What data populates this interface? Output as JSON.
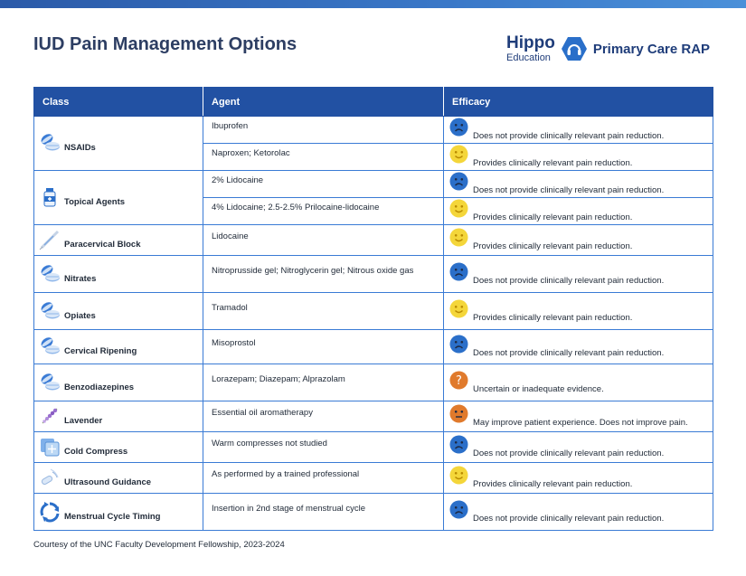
{
  "page": {
    "title": "IUD Pain Management Options",
    "footer": "Courtesy of the UNC Faculty Development Fellowship, 2023-2024"
  },
  "brand": {
    "name": "Hippo",
    "sub": "Education",
    "product": "Primary Care RAP",
    "badge_icon": "hippo-headphones-icon",
    "color": "#1f3d7a",
    "badge_color": "#2a6fc9"
  },
  "table": {
    "headers": [
      "Class",
      "Agent",
      "Efficacy"
    ],
    "header_color": "#2251a3",
    "border_color": "#3a7bd5"
  },
  "efficacy_colors": {
    "blue": "#2b6fc9",
    "yellow": "#f4d63a",
    "orange": "#e07a2c"
  },
  "rows": [
    {
      "class": "NSAIDs",
      "icon": "pills-icon",
      "agents": [
        {
          "agent": "Ibuprofen",
          "face": "blue-sad",
          "efficacy": "Does not provide clinically relevant pain reduction."
        },
        {
          "agent": "Naproxen; Ketorolac",
          "face": "yellow-smile",
          "efficacy": "Provides clinically relevant pain reduction."
        }
      ]
    },
    {
      "class": "Topical Agents",
      "icon": "medicine-bottle-icon",
      "agents": [
        {
          "agent": "2% Lidocaine",
          "face": "blue-sad",
          "efficacy": "Does not provide clinically relevant pain reduction."
        },
        {
          "agent": "4% Lidocaine; 2.5-2.5% Prilocaine-lidocaine",
          "face": "yellow-smile",
          "efficacy": "Provides clinically relevant pain reduction."
        }
      ]
    },
    {
      "class": "Paracervical Block",
      "icon": "syringe-icon",
      "agents": [
        {
          "agent": "Lidocaine",
          "face": "yellow-smile",
          "efficacy": "Provides clinically relevant pain reduction."
        }
      ]
    },
    {
      "class": "Nitrates",
      "icon": "pills-icon",
      "agents": [
        {
          "agent": "Nitroprusside gel; Nitroglycerin gel; Nitrous oxide gas",
          "face": "blue-sad",
          "efficacy": "Does not provide clinically relevant pain reduction."
        }
      ]
    },
    {
      "class": "Opiates",
      "icon": "pills-icon",
      "agents": [
        {
          "agent": "Tramadol",
          "face": "yellow-smile",
          "efficacy": "Provides clinically relevant pain reduction."
        }
      ]
    },
    {
      "class": "Cervical Ripening",
      "icon": "pills-icon",
      "agents": [
        {
          "agent": "Misoprostol",
          "face": "blue-sad",
          "efficacy": "Does not provide clinically relevant pain reduction."
        }
      ]
    },
    {
      "class": "Benzodiazepines",
      "icon": "pills-icon",
      "agents": [
        {
          "agent": "Lorazepam; Diazepam; Alprazolam",
          "face": "orange-question",
          "efficacy": "Uncertain or inadequate evidence."
        }
      ]
    },
    {
      "class": "Lavender",
      "icon": "lavender-icon",
      "agents": [
        {
          "agent": "Essential oil aromatherapy",
          "face": "orange-neutral",
          "efficacy": "May improve patient experience. Does not improve pain."
        }
      ]
    },
    {
      "class": "Cold Compress",
      "icon": "cold-compress-icon",
      "agents": [
        {
          "agent": "Warm compresses not studied",
          "face": "blue-sad",
          "efficacy": "Does not provide clinically relevant pain reduction."
        }
      ]
    },
    {
      "class": "Ultrasound Guidance",
      "icon": "ultrasound-probe-icon",
      "agents": [
        {
          "agent": "As performed by a trained professional",
          "face": "yellow-smile",
          "efficacy": "Provides clinically relevant pain reduction."
        }
      ]
    },
    {
      "class": "Menstrual Cycle Timing",
      "icon": "cycle-arrows-icon",
      "agents": [
        {
          "agent": "Insertion in 2nd stage of menstrual cycle",
          "face": "blue-sad",
          "efficacy": "Does not provide clinically relevant pain reduction."
        }
      ]
    }
  ]
}
